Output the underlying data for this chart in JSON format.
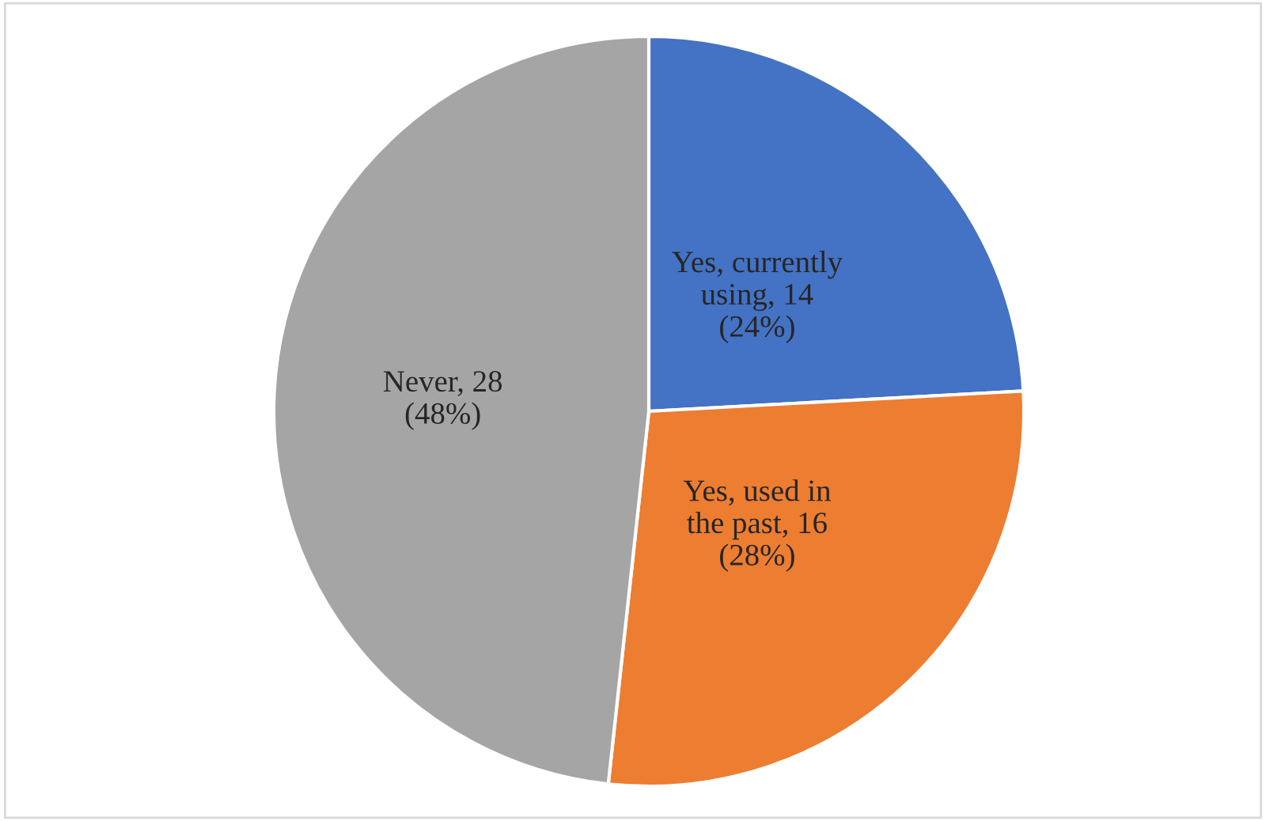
{
  "chart_data": {
    "type": "pie",
    "categories": [
      "Yes, currently using",
      "Yes, used in the past",
      "Never"
    ],
    "values": [
      14,
      16,
      28
    ],
    "value_labels": [
      "14 (24%)",
      "16 (28%)",
      "28 (48%)"
    ],
    "colors": [
      "#4472c4",
      "#ed7d31",
      "#a5a5a5"
    ]
  }
}
